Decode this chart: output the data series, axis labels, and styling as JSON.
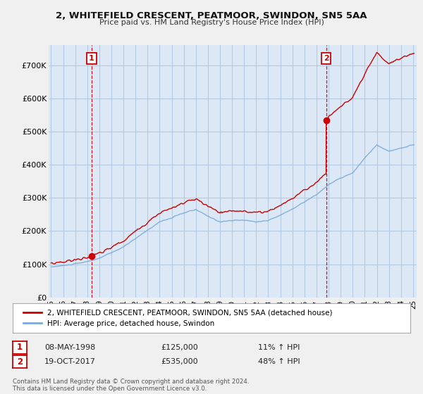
{
  "title1": "2, WHITEFIELD CRESCENT, PEATMOOR, SWINDON, SN5 5AA",
  "title2": "Price paid vs. HM Land Registry's House Price Index (HPI)",
  "legend_line1": "2, WHITEFIELD CRESCENT, PEATMOOR, SWINDON, SN5 5AA (detached house)",
  "legend_line2": "HPI: Average price, detached house, Swindon",
  "sale1_label": "1",
  "sale1_date": "08-MAY-1998",
  "sale1_price": "£125,000",
  "sale1_hpi": "11% ↑ HPI",
  "sale1_year": 1998.36,
  "sale1_value": 125000,
  "sale2_label": "2",
  "sale2_date": "19-OCT-2017",
  "sale2_price": "£535,000",
  "sale2_hpi": "48% ↑ HPI",
  "sale2_year": 2017.8,
  "sale2_value": 535000,
  "background_color": "#f0f0f0",
  "plot_bg_color": "#dce8f5",
  "grid_color": "#b0c8e0",
  "red_color": "#cc0000",
  "blue_color": "#7aaadd",
  "ylim_max": 760000,
  "yticks": [
    0,
    100000,
    200000,
    300000,
    400000,
    500000,
    600000,
    700000
  ],
  "ytick_labels": [
    "£0",
    "£100K",
    "£200K",
    "£300K",
    "£400K",
    "£500K",
    "£600K",
    "£700K"
  ],
  "footer": "Contains HM Land Registry data © Crown copyright and database right 2024.\nThis data is licensed under the Open Government Licence v3.0.",
  "xtick_years": [
    "95",
    "96",
    "97",
    "98",
    "99",
    "00",
    "01",
    "02",
    "03",
    "04",
    "05",
    "06",
    "07",
    "08",
    "09",
    "10",
    "11",
    "12",
    "13",
    "14",
    "15",
    "16",
    "17",
    "18",
    "19",
    "20",
    "21",
    "22",
    "23",
    "24",
    "25"
  ],
  "xtick_positions": [
    1995,
    1996,
    1997,
    1998,
    1999,
    2000,
    2001,
    2002,
    2003,
    2004,
    2005,
    2006,
    2007,
    2008,
    2009,
    2010,
    2011,
    2012,
    2013,
    2014,
    2015,
    2016,
    2017,
    2018,
    2019,
    2020,
    2021,
    2022,
    2023,
    2024,
    2025
  ]
}
